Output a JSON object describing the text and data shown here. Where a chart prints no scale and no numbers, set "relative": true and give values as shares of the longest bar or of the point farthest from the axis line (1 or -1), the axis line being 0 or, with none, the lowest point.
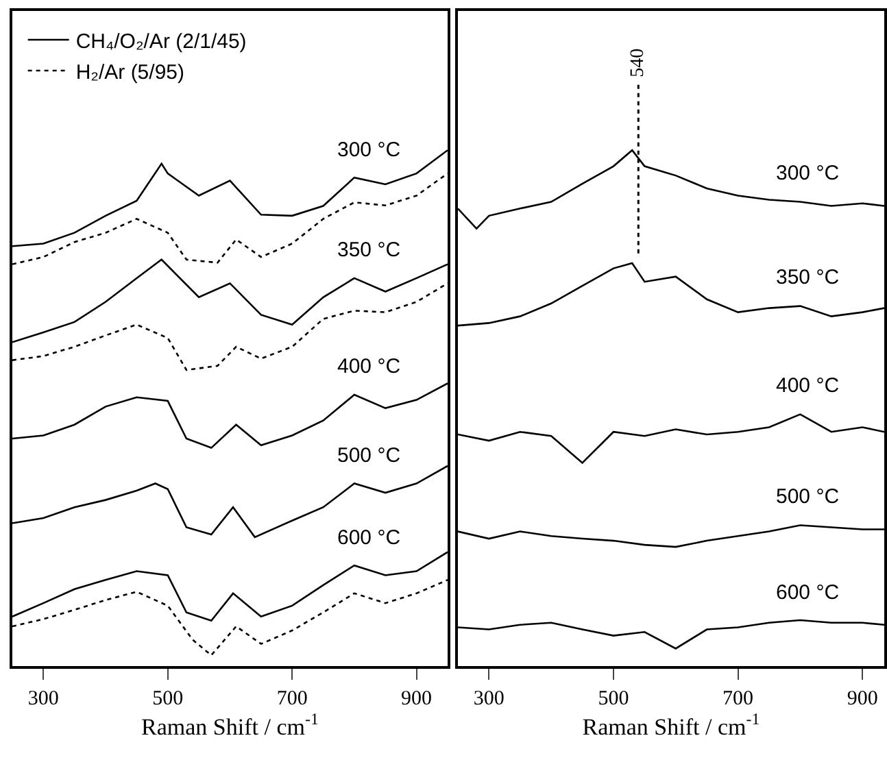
{
  "chart_data": [
    {
      "type": "line",
      "relative": true,
      "xlabel": "Raman Shift / cm$^{-1}$",
      "xlim": [
        250,
        950
      ],
      "xticks": [
        300,
        500,
        700,
        900
      ],
      "legend": "top left",
      "marker": "none",
      "series": [
        {
          "name": "CH₄/O₂/Ar (2/1/45)",
          "color": "#000000",
          "line_style": "solid",
          "x": [
            250,
            300,
            350,
            400,
            450,
            490,
            500,
            550,
            600,
            650,
            700,
            750,
            800,
            850,
            900,
            950
          ],
          "values": [
            0.814,
            0.819,
            0.84,
            0.873,
            0.902,
            0.974,
            0.955,
            0.912,
            0.941,
            0.875,
            0.873,
            0.892,
            0.947,
            0.934,
            0.955,
            1.0
          ]
        },
        {
          "name": "H₂/Ar (5/95)",
          "color": "#000000",
          "line_style": "dotted",
          "x": [
            250,
            300,
            350,
            400,
            450,
            500,
            530,
            580,
            610,
            650,
            700,
            750,
            800,
            850,
            900,
            950
          ],
          "values": [
            0.779,
            0.793,
            0.822,
            0.84,
            0.867,
            0.84,
            0.788,
            0.782,
            0.827,
            0.793,
            0.819,
            0.867,
            0.899,
            0.893,
            0.912,
            0.955
          ]
        },
        {
          "color": "#000000",
          "line_style": "solid",
          "x": [
            250,
            300,
            350,
            400,
            450,
            490,
            550,
            600,
            650,
            700,
            750,
            800,
            850,
            900,
            950
          ],
          "values": [
            0.628,
            0.647,
            0.667,
            0.706,
            0.752,
            0.788,
            0.715,
            0.742,
            0.681,
            0.662,
            0.715,
            0.752,
            0.726,
            0.752,
            0.779
          ]
        },
        {
          "color": "#000000",
          "line_style": "dotted",
          "x": [
            250,
            300,
            350,
            400,
            450,
            500,
            530,
            580,
            610,
            650,
            700,
            750,
            800,
            850,
            900,
            950
          ],
          "values": [
            0.593,
            0.601,
            0.619,
            0.641,
            0.662,
            0.636,
            0.574,
            0.582,
            0.619,
            0.596,
            0.619,
            0.673,
            0.689,
            0.686,
            0.706,
            0.742
          ]
        },
        {
          "color": "#000000",
          "line_style": "solid",
          "x": [
            250,
            300,
            350,
            400,
            450,
            500,
            530,
            570,
            610,
            650,
            700,
            750,
            800,
            850,
            900,
            950
          ],
          "values": [
            0.441,
            0.447,
            0.468,
            0.503,
            0.521,
            0.514,
            0.441,
            0.423,
            0.468,
            0.428,
            0.447,
            0.476,
            0.526,
            0.5,
            0.516,
            0.548
          ]
        },
        {
          "color": "#000000",
          "line_style": "solid",
          "x": [
            250,
            300,
            350,
            400,
            450,
            480,
            500,
            530,
            570,
            605,
            640,
            700,
            750,
            800,
            850,
            900,
            950
          ],
          "values": [
            0.277,
            0.287,
            0.308,
            0.322,
            0.34,
            0.354,
            0.343,
            0.269,
            0.255,
            0.308,
            0.25,
            0.282,
            0.308,
            0.354,
            0.336,
            0.354,
            0.388
          ]
        },
        {
          "color": "#000000",
          "line_style": "solid",
          "x": [
            250,
            300,
            350,
            400,
            450,
            500,
            530,
            570,
            605,
            650,
            700,
            750,
            800,
            850,
            900,
            950
          ],
          "values": [
            0.096,
            0.122,
            0.149,
            0.167,
            0.184,
            0.176,
            0.104,
            0.088,
            0.141,
            0.096,
            0.117,
            0.157,
            0.195,
            0.176,
            0.184,
            0.221
          ]
        },
        {
          "color": "#000000",
          "line_style": "dotted",
          "x": [
            250,
            300,
            350,
            400,
            450,
            500,
            540,
            570,
            610,
            650,
            700,
            750,
            800,
            850,
            900,
            950
          ],
          "values": [
            0.077,
            0.091,
            0.109,
            0.128,
            0.144,
            0.117,
            0.051,
            0.021,
            0.077,
            0.043,
            0.069,
            0.104,
            0.141,
            0.122,
            0.141,
            0.167
          ]
        }
      ],
      "annotations": [
        "300 °C",
        "350 °C",
        "400 °C",
        "500 °C",
        "600 °C"
      ]
    },
    {
      "type": "line",
      "relative": true,
      "xlabel": "Raman Shift / cm$^{-1}$",
      "xlim": [
        250,
        935
      ],
      "xticks": [
        300,
        500,
        700,
        900
      ],
      "marker": "none",
      "series": [
        {
          "color": "#000000",
          "line_style": "solid",
          "x": [
            250,
            280,
            300,
            350,
            400,
            450,
            500,
            530,
            550,
            600,
            650,
            700,
            750,
            800,
            850,
            900,
            935
          ],
          "values": [
            0.887,
            0.848,
            0.873,
            0.887,
            0.9,
            0.935,
            0.969,
            1.0,
            0.969,
            0.951,
            0.926,
            0.912,
            0.904,
            0.9,
            0.892,
            0.897,
            0.892
          ]
        },
        {
          "color": "#000000",
          "line_style": "solid",
          "x": [
            250,
            300,
            350,
            400,
            450,
            500,
            530,
            550,
            600,
            650,
            700,
            750,
            800,
            850,
            900,
            935
          ],
          "values": [
            0.66,
            0.665,
            0.678,
            0.703,
            0.737,
            0.771,
            0.781,
            0.745,
            0.755,
            0.711,
            0.686,
            0.694,
            0.698,
            0.678,
            0.686,
            0.694
          ]
        },
        {
          "color": "#000000",
          "line_style": "solid",
          "x": [
            250,
            300,
            350,
            400,
            450,
            500,
            550,
            600,
            650,
            700,
            750,
            800,
            850,
            900,
            935
          ],
          "values": [
            0.449,
            0.437,
            0.454,
            0.446,
            0.394,
            0.454,
            0.446,
            0.459,
            0.449,
            0.454,
            0.463,
            0.488,
            0.454,
            0.463,
            0.454
          ]
        },
        {
          "color": "#000000",
          "line_style": "solid",
          "x": [
            250,
            300,
            350,
            400,
            450,
            500,
            550,
            600,
            650,
            700,
            750,
            800,
            850,
            900,
            935
          ],
          "values": [
            0.261,
            0.247,
            0.261,
            0.252,
            0.247,
            0.243,
            0.235,
            0.231,
            0.243,
            0.252,
            0.261,
            0.273,
            0.269,
            0.265,
            0.265
          ]
        },
        {
          "color": "#000000",
          "line_style": "solid",
          "x": [
            250,
            300,
            350,
            400,
            450,
            500,
            550,
            600,
            650,
            700,
            750,
            800,
            850,
            900,
            935
          ],
          "values": [
            0.075,
            0.071,
            0.08,
            0.084,
            0.071,
            0.059,
            0.066,
            0.034,
            0.071,
            0.075,
            0.084,
            0.089,
            0.084,
            0.084,
            0.08
          ]
        }
      ],
      "ref_lines": [
        {
          "axis": "x",
          "value": 540,
          "label": "540",
          "line_style": "dotted",
          "color": "#000000"
        }
      ],
      "annotations": [
        "300 °C",
        "350 °C",
        "400 °C",
        "500 °C",
        "600 °C"
      ]
    }
  ]
}
